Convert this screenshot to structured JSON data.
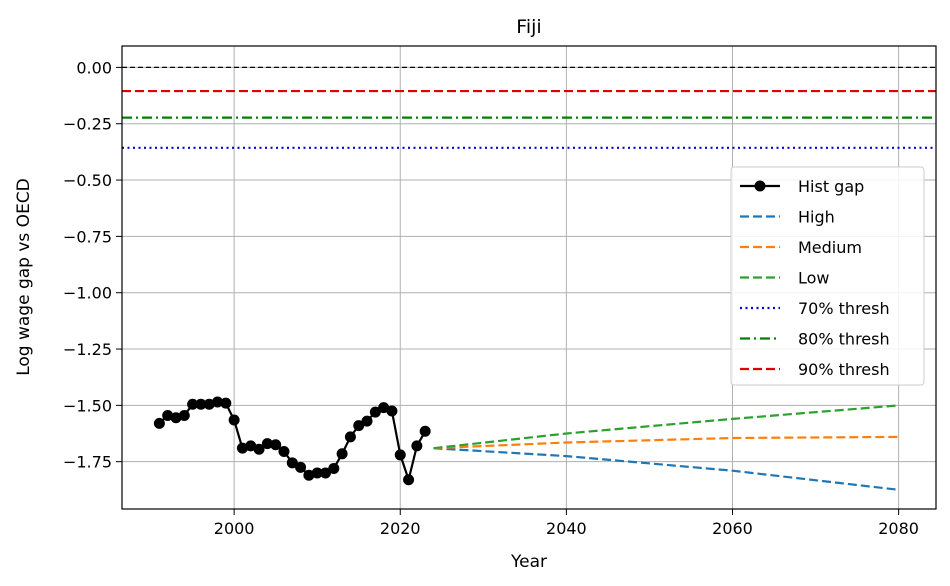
{
  "chart_data": {
    "type": "line",
    "title": "Fiji",
    "xlabel": "Year",
    "ylabel": "Log wage gap vs OECD",
    "xlim": [
      1986.5,
      2084.5
    ],
    "ylim": [
      -1.96,
      0.095
    ],
    "xticks": [
      2000,
      2020,
      2040,
      2060,
      2080
    ],
    "yticks": [
      0.0,
      -0.25,
      -0.5,
      -0.75,
      -1.0,
      -1.25,
      -1.5,
      -1.75
    ],
    "ytick_labels": [
      "0.00",
      "−0.25",
      "−0.50",
      "−0.75",
      "−1.00",
      "−1.25",
      "−1.50",
      "−1.75"
    ],
    "grid": true,
    "legend_position": "center-right",
    "reference_lines": [
      {
        "name": "zero",
        "y": 0.0,
        "color": "#000000",
        "style": "dashed"
      },
      {
        "name": "90% thresh",
        "y": -0.105,
        "color": "#e00000",
        "style": "dashed"
      },
      {
        "name": "80% thresh",
        "y": -0.223,
        "color": "#008000",
        "style": "dashdot"
      },
      {
        "name": "70% thresh",
        "y": -0.357,
        "color": "#0000dd",
        "style": "dotted"
      }
    ],
    "series": [
      {
        "name": "Hist gap",
        "color": "#000000",
        "style": "solid-marker",
        "x": [
          1991,
          1992,
          1993,
          1994,
          1995,
          1996,
          1997,
          1998,
          1999,
          2000,
          2001,
          2002,
          2003,
          2004,
          2005,
          2006,
          2007,
          2008,
          2009,
          2010,
          2011,
          2012,
          2013,
          2014,
          2015,
          2016,
          2017,
          2018,
          2019,
          2020,
          2021,
          2022,
          2023
        ],
        "y": [
          -1.58,
          -1.545,
          -1.555,
          -1.545,
          -1.495,
          -1.495,
          -1.495,
          -1.485,
          -1.49,
          -1.565,
          -1.69,
          -1.68,
          -1.695,
          -1.67,
          -1.675,
          -1.705,
          -1.755,
          -1.775,
          -1.81,
          -1.8,
          -1.8,
          -1.78,
          -1.715,
          -1.64,
          -1.59,
          -1.57,
          -1.53,
          -1.51,
          -1.525,
          -1.72,
          -1.83,
          -1.68,
          -1.615
        ]
      },
      {
        "name": "High",
        "color": "#1f77b4",
        "style": "dashed",
        "x": [
          2024,
          2040,
          2060,
          2080
        ],
        "y": [
          -1.69,
          -1.725,
          -1.79,
          -1.875
        ]
      },
      {
        "name": "Medium",
        "color": "#ff7f0e",
        "style": "dashed",
        "x": [
          2024,
          2040,
          2060,
          2080
        ],
        "y": [
          -1.69,
          -1.665,
          -1.645,
          -1.64
        ]
      },
      {
        "name": "Low",
        "color": "#2ca02c",
        "style": "dashed",
        "x": [
          2024,
          2040,
          2060,
          2080
        ],
        "y": [
          -1.69,
          -1.625,
          -1.56,
          -1.5
        ]
      }
    ],
    "legend": [
      {
        "label": "Hist gap",
        "color": "#000000",
        "style": "solid-marker"
      },
      {
        "label": "High",
        "color": "#1f77b4",
        "style": "dashed"
      },
      {
        "label": "Medium",
        "color": "#ff7f0e",
        "style": "dashed"
      },
      {
        "label": "Low",
        "color": "#2ca02c",
        "style": "dashed"
      },
      {
        "label": "70% thresh",
        "color": "#0000dd",
        "style": "dotted"
      },
      {
        "label": "80% thresh",
        "color": "#008000",
        "style": "dashdot"
      },
      {
        "label": "90% thresh",
        "color": "#e00000",
        "style": "dashed"
      }
    ]
  }
}
